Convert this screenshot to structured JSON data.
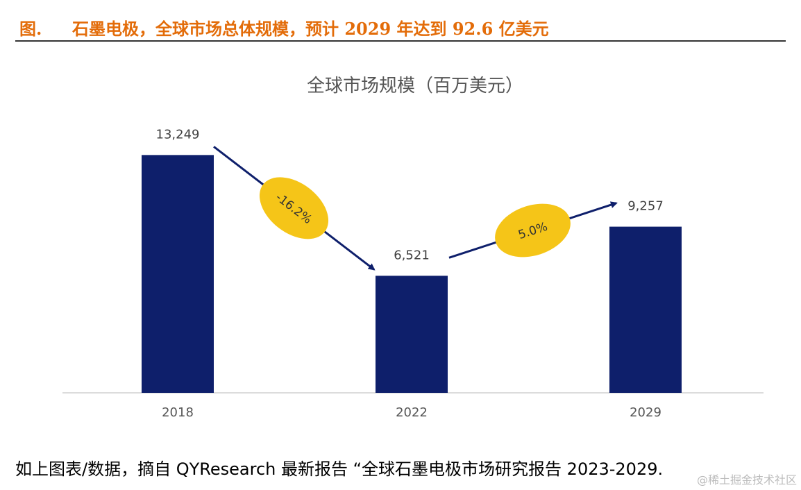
{
  "figure": {
    "label": "图.",
    "caption": "石墨电极，全球市场总体规模，预计 2029 年达到 92.6 亿美元"
  },
  "chart_data": {
    "type": "bar",
    "title": "全球市场规模（百万美元）",
    "categories": [
      "2018",
      "2022",
      "2029"
    ],
    "values": [
      13249,
      6521,
      9257
    ],
    "data_labels": [
      "13,249",
      "6,521",
      "9,257"
    ],
    "ylim": [
      0,
      14500
    ],
    "grid": false,
    "bar_color": "#0e1f6b",
    "annotations": [
      {
        "text": "-16.2%",
        "from": "2018",
        "to": "2022"
      },
      {
        "text": "5.0%",
        "from": "2022",
        "to": "2029"
      }
    ],
    "annotation_fill": "#f5c518",
    "arrow_color": "#0e1f6b"
  },
  "source_note": "如上图表/数据，摘自 QYResearch 最新报告 “全球石墨电极市场研究报告 2023-2029.",
  "watermark": "@稀土掘金技术社区"
}
